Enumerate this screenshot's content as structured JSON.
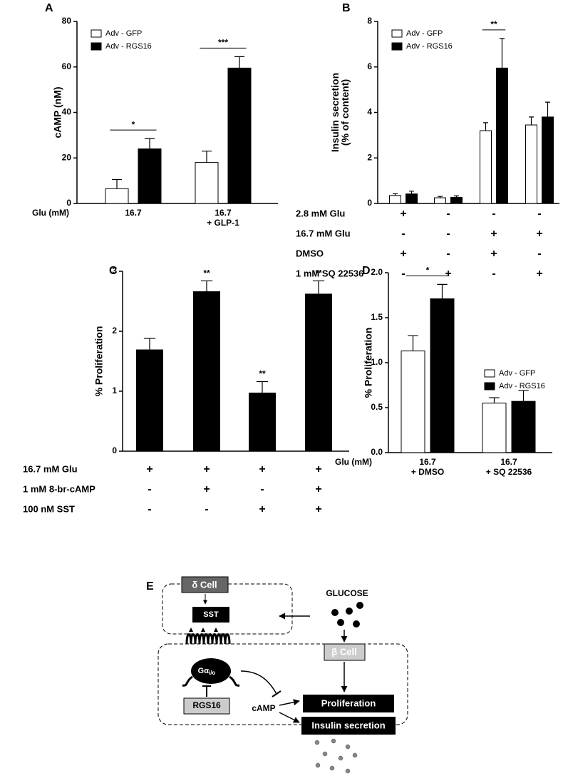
{
  "chart_data": [
    {
      "panel": "A",
      "type": "bar",
      "ylabel": "cAMP (nM)",
      "xlabel": "Glu (mM)",
      "categories": [
        "16.7",
        "16.7\n+ GLP-1"
      ],
      "series": [
        {
          "name": "Adv - GFP",
          "color": "#ffffff",
          "edgecolor": "#000000",
          "values": [
            6.5,
            18
          ],
          "errors": [
            4,
            5
          ]
        },
        {
          "name": "Adv - RGS16",
          "color": "#000000",
          "edgecolor": "#000000",
          "values": [
            24,
            59.5
          ],
          "errors": [
            4.5,
            5
          ]
        }
      ],
      "ylim": [
        0,
        80
      ],
      "yticks": [
        0,
        20,
        40,
        60,
        80
      ],
      "legend": "upper left",
      "significance": [
        "*",
        "***"
      ],
      "bracket": true
    },
    {
      "panel": "B",
      "type": "bar",
      "ylabel": "Insulin secretion\n(% of content)",
      "series": [
        {
          "name": "Adv - GFP",
          "color": "#ffffff",
          "edgecolor": "#000000",
          "values": [
            0.35,
            0.25,
            3.2,
            3.45
          ],
          "errors": [
            0.08,
            0.06,
            0.35,
            0.35
          ]
        },
        {
          "name": "Adv - RGS16",
          "color": "#000000",
          "edgecolor": "#000000",
          "values": [
            0.42,
            0.27,
            5.95,
            3.8
          ],
          "errors": [
            0.12,
            0.07,
            1.3,
            0.65
          ]
        }
      ],
      "ylim": [
        0,
        8
      ],
      "yticks": [
        0,
        2,
        4,
        6,
        8
      ],
      "legend": "upper left",
      "significance": [
        null,
        null,
        "**",
        null
      ],
      "bracket": true,
      "conditions": [
        {
          "name": "2.8 mM Glu",
          "values": [
            "+",
            "-",
            "-",
            "-"
          ]
        },
        {
          "name": "16.7 mM Glu",
          "values": [
            "-",
            "-",
            "+",
            "+"
          ]
        },
        {
          "name": "DMSO",
          "values": [
            "+",
            "-",
            "+",
            "-"
          ]
        },
        {
          "name": "1 mM SQ 22536",
          "values": [
            "-",
            "+",
            "-",
            "+"
          ]
        }
      ]
    },
    {
      "panel": "C",
      "type": "bar",
      "ylabel": "% Proliferation",
      "series": [
        {
          "color": "#000000",
          "edgecolor": "#000000",
          "values": [
            1.69,
            2.66,
            0.97,
            2.62
          ],
          "errors": [
            0.19,
            0.18,
            0.19,
            0.22
          ]
        }
      ],
      "ylim": [
        0,
        3
      ],
      "yticks": [
        0,
        1,
        2,
        3
      ],
      "significance": [
        null,
        "**",
        "**",
        "**"
      ],
      "bracket": false,
      "conditions": [
        {
          "name": "16.7 mM Glu",
          "values": [
            "+",
            "+",
            "+",
            "+"
          ]
        },
        {
          "name": "1 mM 8-br-cAMP",
          "values": [
            "-",
            "+",
            "-",
            "+"
          ]
        },
        {
          "name": "100 nM SST",
          "values": [
            "-",
            "-",
            "+",
            "+"
          ]
        }
      ]
    },
    {
      "panel": "D",
      "type": "bar",
      "ylabel": "% Proliferation",
      "xlabel": "Glu (mM)",
      "categories": [
        "16.7\n+ DMSO",
        "16.7\n+ SQ 22536"
      ],
      "series": [
        {
          "name": "Adv - GFP",
          "color": "#ffffff",
          "edgecolor": "#000000",
          "values": [
            1.13,
            0.55
          ],
          "errors": [
            0.17,
            0.06
          ]
        },
        {
          "name": "Adv - RGS16",
          "color": "#000000",
          "edgecolor": "#000000",
          "values": [
            1.71,
            0.57
          ],
          "errors": [
            0.16,
            0.12
          ]
        }
      ],
      "ylim": [
        0,
        2
      ],
      "yticks": [
        {
          "value": 0,
          "label": "0.0"
        },
        0.5,
        {
          "value": 1,
          "label": "1.0"
        },
        1.5,
        {
          "value": 2,
          "label": "2.0"
        }
      ],
      "legend": "center right",
      "significance": [
        "*",
        null
      ],
      "bracket": true
    }
  ],
  "diagram": {
    "panel": "E",
    "delta_cell": "δ Cell",
    "sst": "SST",
    "glucose": "GLUCOSE",
    "beta_cell": "β Cell",
    "g_protein": "Gα",
    "g_protein_sub": "i/o",
    "rgs16": "RGS16",
    "camp": "cAMP",
    "proliferation": "Proliferation",
    "insulin_secretion": "Insulin secretion"
  }
}
